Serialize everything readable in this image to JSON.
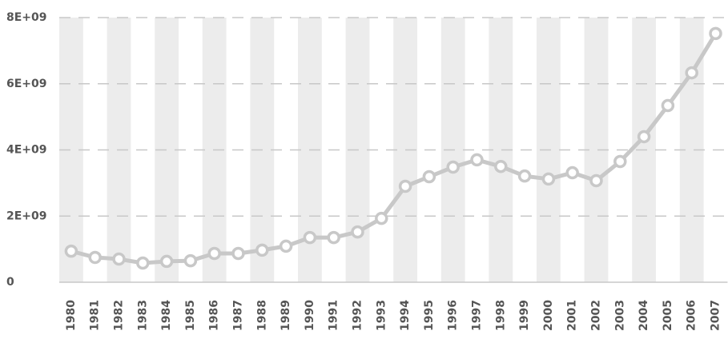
{
  "chart_data": {
    "type": "line",
    "categories": [
      "1980",
      "1981",
      "1982",
      "1983",
      "1984",
      "1985",
      "1986",
      "1987",
      "1988",
      "1989",
      "1990",
      "1991",
      "1992",
      "1993",
      "1994",
      "1995",
      "1996",
      "1997",
      "1998",
      "1999",
      "2000",
      "2001",
      "2002",
      "2003",
      "2004",
      "2005",
      "2006",
      "2007"
    ],
    "series": [
      {
        "color": "#c8c8c8",
        "values": [
          940000000,
          750000000,
          700000000,
          580000000,
          630000000,
          650000000,
          870000000,
          870000000,
          970000000,
          1090000000,
          1350000000,
          1350000000,
          1520000000,
          1930000000,
          2900000000,
          3190000000,
          3480000000,
          3700000000,
          3500000000,
          3210000000,
          3120000000,
          3310000000,
          3070000000,
          3650000000,
          4400000000,
          5340000000,
          6330000000,
          7520000000
        ]
      }
    ],
    "ylim": [
      0,
      8000000000
    ],
    "yticks": [
      0,
      {
        "value": 2000000000,
        "label": "2E+09"
      },
      {
        "value": 4000000000,
        "label": "4E+09"
      },
      {
        "value": 6000000000,
        "label": "6E+09"
      },
      {
        "value": 8000000000,
        "label": "8E+09"
      }
    ],
    "grid": true
  }
}
